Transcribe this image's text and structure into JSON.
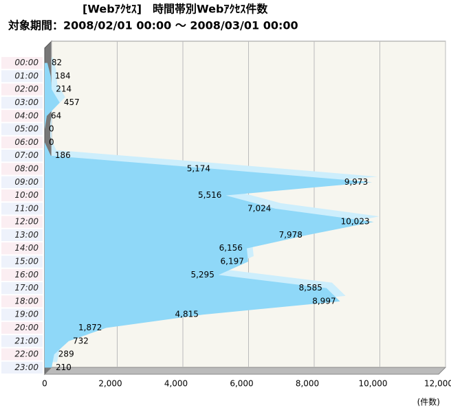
{
  "chart_data": {
    "type": "area",
    "orientation": "horizontal",
    "title": "[Webｱｸｾｽ]　時間帯別Webｱｸｾｽ件数",
    "subtitle": "対象期間：2008/02/01 00:00 ～ 2008/03/01 00:00",
    "x_label": "(件数)",
    "categories": [
      "00:00",
      "01:00",
      "02:00",
      "03:00",
      "04:00",
      "05:00",
      "06:00",
      "07:00",
      "08:00",
      "09:00",
      "10:00",
      "11:00",
      "12:00",
      "13:00",
      "14:00",
      "15:00",
      "16:00",
      "17:00",
      "18:00",
      "19:00",
      "20:00",
      "21:00",
      "22:00",
      "23:00"
    ],
    "values": [
      82,
      184,
      214,
      457,
      64,
      0,
      0,
      186,
      5174,
      9973,
      5516,
      7024,
      10023,
      7978,
      6156,
      6197,
      5295,
      8585,
      8997,
      4815,
      1872,
      732,
      289,
      210
    ],
    "value_labels": [
      "82",
      "184",
      "214",
      "457",
      "64",
      "0",
      "0",
      "186",
      "5,174",
      "9,973",
      "5,516",
      "7,024",
      "10,023",
      "7,978",
      "6,156",
      "6,197",
      "5,295",
      "8,585",
      "8,997",
      "4,815",
      "1,872",
      "732",
      "289",
      "210"
    ],
    "color": "#8fd8f8",
    "xlim": [
      0,
      12000
    ],
    "xticks": [
      0,
      {
        "value": 2000,
        "label": "2,000"
      },
      {
        "value": 4000,
        "label": "4,000"
      },
      {
        "value": 6000,
        "label": "6,000"
      },
      {
        "value": 8000,
        "label": "8,000"
      },
      {
        "value": 10000,
        "label": "10,000"
      },
      {
        "value": 12000,
        "label": "12,000"
      }
    ],
    "grid": true
  }
}
